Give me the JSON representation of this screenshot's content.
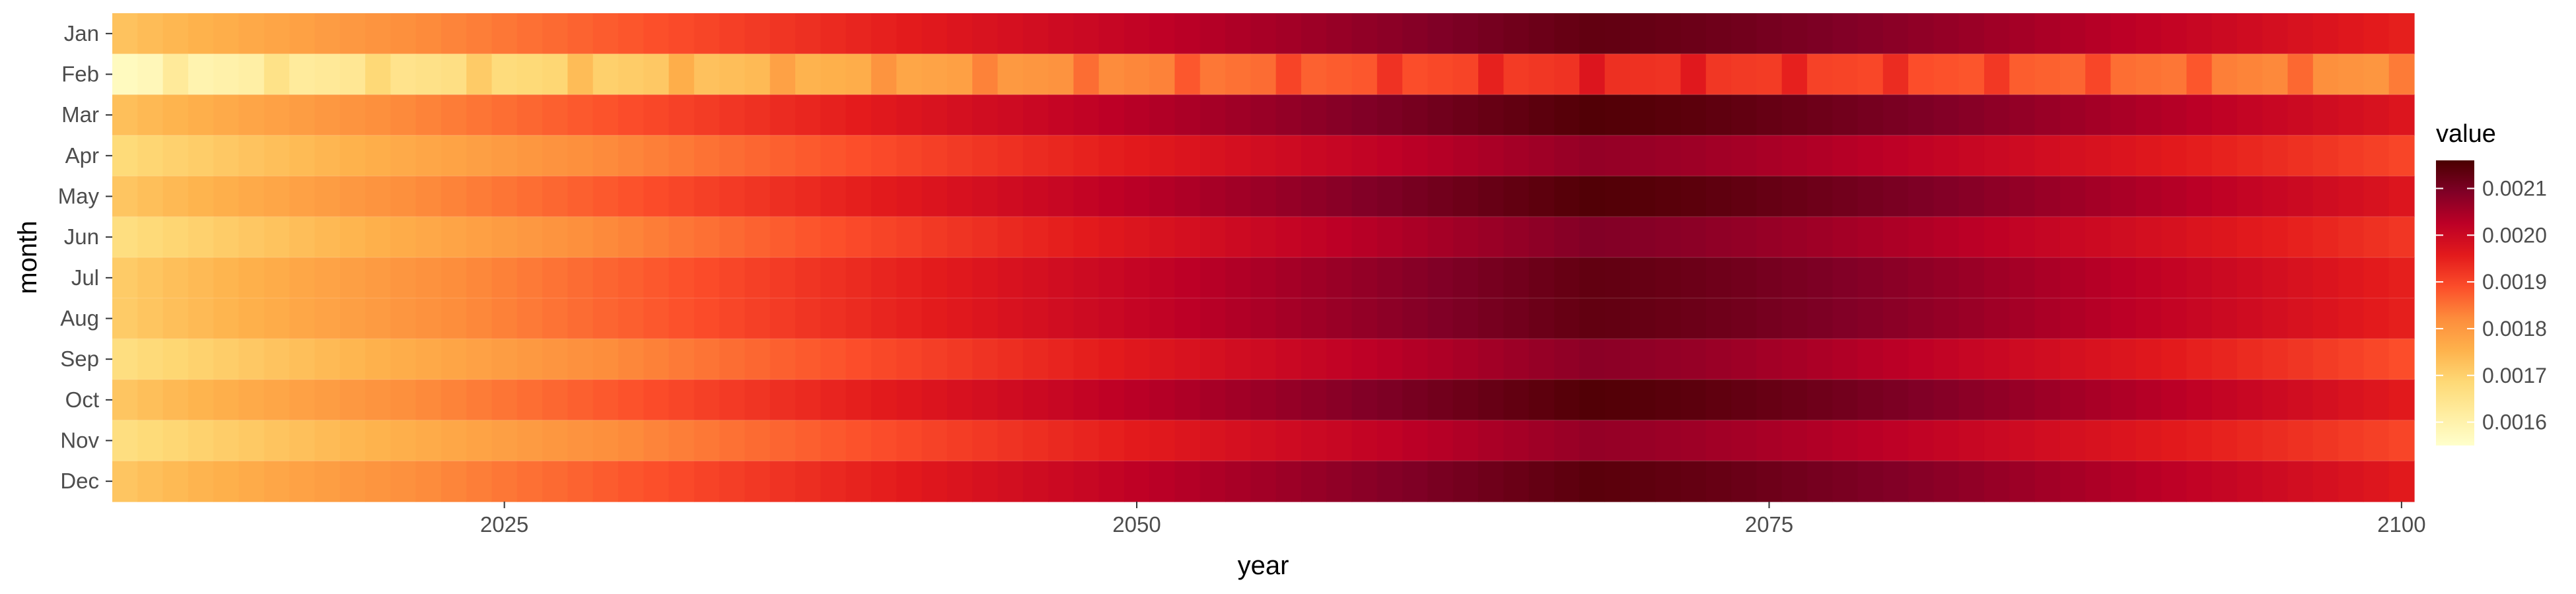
{
  "chart_data": {
    "type": "heatmap",
    "title": "",
    "xlabel": "year",
    "ylabel": "month",
    "x_range": [
      2010,
      2100
    ],
    "x_ticks": [
      2025,
      2050,
      2075,
      2100
    ],
    "months": [
      "Jan",
      "Feb",
      "Mar",
      "Apr",
      "May",
      "Jun",
      "Jul",
      "Aug",
      "Sep",
      "Oct",
      "Nov",
      "Dec"
    ],
    "value_shape": {
      "Jan": {
        "start": 0.001725,
        "peak": 0.00213,
        "end": 0.00195
      },
      "Feb": {
        "start": 0.00157,
        "peak": 0.00193,
        "end": 0.0018
      },
      "Mar": {
        "start": 0.00173,
        "peak": 0.00215,
        "end": 0.00197
      },
      "Apr": {
        "start": 0.00168,
        "peak": 0.00207,
        "end": 0.0019
      },
      "May": {
        "start": 0.00172,
        "peak": 0.00215,
        "end": 0.00197
      },
      "Jun": {
        "start": 0.00167,
        "peak": 0.00209,
        "end": 0.00192
      },
      "Jul": {
        "start": 0.00171,
        "peak": 0.00213,
        "end": 0.00195
      },
      "Aug": {
        "start": 0.00171,
        "peak": 0.00213,
        "end": 0.00195
      },
      "Sep": {
        "start": 0.00167,
        "peak": 0.00208,
        "end": 0.00189
      },
      "Oct": {
        "start": 0.00172,
        "peak": 0.00215,
        "end": 0.00196
      },
      "Nov": {
        "start": 0.00167,
        "peak": 0.00207,
        "end": 0.0019
      },
      "Dec": {
        "start": 0.00172,
        "peak": 0.00214,
        "end": 0.00196
      }
    },
    "peak_year": 2068,
    "feb_leap_year_boost": 4e-05,
    "legend": {
      "title": "value",
      "position": "right",
      "ticks": [
        "0.0016",
        "0.0017",
        "0.0018",
        "0.0019",
        "0.0020",
        "0.0021"
      ],
      "range": [
        0.00155,
        0.00216
      ],
      "colors": [
        "#ffffcc",
        "#ffeda0",
        "#fed976",
        "#feb24c",
        "#fd8d3c",
        "#fc4e2a",
        "#e31a1c",
        "#bd0026",
        "#800026",
        "#4a0000"
      ]
    },
    "grid": false
  }
}
